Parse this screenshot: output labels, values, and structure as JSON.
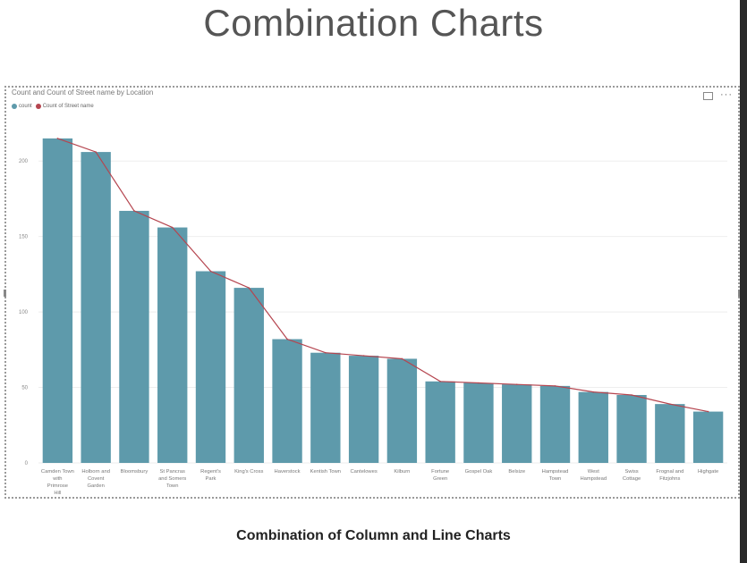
{
  "slide": {
    "title": "Combination Charts",
    "caption": "Combination of Column and Line Charts"
  },
  "visual": {
    "title": "Count and Count of Street name by Location",
    "focus_icon": "focus-mode-icon",
    "more_icon": "more-options-icon"
  },
  "colors": {
    "bar": "#5e9aab",
    "line": "#b5454f",
    "grid": "#eeeeee"
  },
  "chart_data": {
    "type": "bar",
    "title": "Count and Count of Street name by Location",
    "categories": [
      "Camden Town with Primrose Hill",
      "Holborn and Covent Garden",
      "Bloomsbury",
      "St Pancras and Somers Town",
      "Regent's Park",
      "King's Cross",
      "Haverstock",
      "Kentish Town",
      "Cantelowes",
      "Kilburn",
      "Fortune Green",
      "Gospel Oak",
      "Belsize",
      "Hampstead Town",
      "West Hampstead",
      "Swiss Cottage",
      "Frognal and Fitzjohns",
      "Highgate"
    ],
    "series": [
      {
        "name": "count",
        "type": "bar",
        "values": [
          215,
          206,
          167,
          156,
          127,
          116,
          82,
          73,
          71,
          69,
          54,
          53,
          52,
          51,
          47,
          45,
          39,
          34
        ]
      },
      {
        "name": "Count of Street name",
        "type": "line",
        "values": [
          215,
          206,
          167,
          156,
          127,
          116,
          82,
          73,
          71,
          69,
          54,
          53,
          52,
          51,
          47,
          45,
          39,
          34
        ]
      }
    ],
    "ylim": [
      0,
      225
    ],
    "yticks": [
      0,
      50,
      100,
      150,
      200
    ],
    "grid": true,
    "legend": "top-left"
  }
}
